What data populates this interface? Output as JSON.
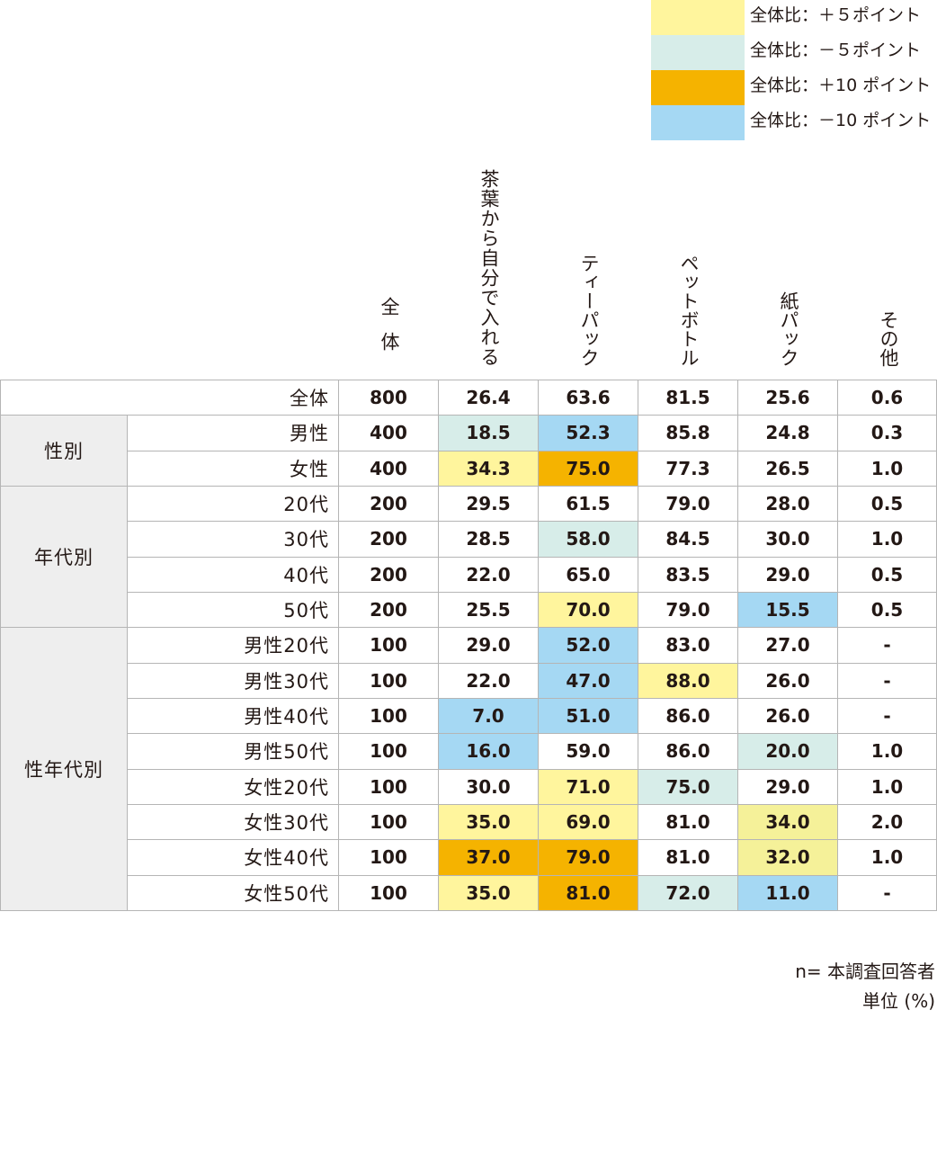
{
  "legend": [
    {
      "label": "全体比：＋５ポイント",
      "color": "#fff59d"
    },
    {
      "label": "全体比：－５ポイント",
      "color": "#d7ede9"
    },
    {
      "label": "全体比：＋10 ポイント",
      "color": "#f5b300"
    },
    {
      "label": "全体比：－10 ポイント",
      "color": "#a5d8f3"
    }
  ],
  "colors": {
    "plus5": "#fff59d",
    "minus5": "#d7ede9",
    "plus10": "#f5b300",
    "minus10": "#a5d8f3",
    "group_bg": "#eeeeee",
    "border": "#b5b5b5",
    "text": "#231815",
    "fill_secondary_yellow": "#f5f199"
  },
  "chart_data": {
    "type": "table",
    "columns": [
      "全体",
      "茶葉から自分で入れる",
      "ティーパック",
      "ペットボトル",
      "紙パック",
      "その他"
    ],
    "groups": [
      {
        "label": "",
        "rows": [
          0
        ]
      },
      {
        "label": "性別",
        "rows": [
          1,
          2
        ]
      },
      {
        "label": "年代別",
        "rows": [
          3,
          4,
          5,
          6
        ]
      },
      {
        "label": "性年代別",
        "rows": [
          7,
          8,
          9,
          10,
          11,
          12,
          13,
          14
        ]
      }
    ],
    "rows": [
      {
        "label": "全体",
        "n": "800",
        "values": [
          "26.4",
          "63.6",
          "81.5",
          "25.6",
          "0.6"
        ],
        "hl": [
          "",
          "",
          "",
          "",
          ""
        ]
      },
      {
        "label": "男性",
        "n": "400",
        "values": [
          "18.5",
          "52.3",
          "85.8",
          "24.8",
          "0.3"
        ],
        "hl": [
          "minus5",
          "minus10",
          "",
          "",
          ""
        ]
      },
      {
        "label": "女性",
        "n": "400",
        "values": [
          "34.3",
          "75.0",
          "77.3",
          "26.5",
          "1.0"
        ],
        "hl": [
          "plus5",
          "plus10",
          "",
          "",
          ""
        ]
      },
      {
        "label": "20代",
        "n": "200",
        "values": [
          "29.5",
          "61.5",
          "79.0",
          "28.0",
          "0.5"
        ],
        "hl": [
          "",
          "",
          "",
          "",
          ""
        ]
      },
      {
        "label": "30代",
        "n": "200",
        "values": [
          "28.5",
          "58.0",
          "84.5",
          "30.0",
          "1.0"
        ],
        "hl": [
          "",
          "minus5",
          "",
          "",
          ""
        ]
      },
      {
        "label": "40代",
        "n": "200",
        "values": [
          "22.0",
          "65.0",
          "83.5",
          "29.0",
          "0.5"
        ],
        "hl": [
          "",
          "",
          "",
          "",
          ""
        ]
      },
      {
        "label": "50代",
        "n": "200",
        "values": [
          "25.5",
          "70.0",
          "79.0",
          "15.5",
          "0.5"
        ],
        "hl": [
          "",
          "plus5",
          "",
          "minus10",
          ""
        ]
      },
      {
        "label": "男性20代",
        "n": "100",
        "values": [
          "29.0",
          "52.0",
          "83.0",
          "27.0",
          "-"
        ],
        "hl": [
          "",
          "minus10",
          "",
          "",
          ""
        ]
      },
      {
        "label": "男性30代",
        "n": "100",
        "values": [
          "22.0",
          "47.0",
          "88.0",
          "26.0",
          "-"
        ],
        "hl": [
          "",
          "minus10",
          "plus5",
          "",
          ""
        ]
      },
      {
        "label": "男性40代",
        "n": "100",
        "values": [
          "7.0",
          "51.0",
          "86.0",
          "26.0",
          "-"
        ],
        "hl": [
          "minus10",
          "minus10",
          "",
          "",
          ""
        ]
      },
      {
        "label": "男性50代",
        "n": "100",
        "values": [
          "16.0",
          "59.0",
          "86.0",
          "20.0",
          "1.0"
        ],
        "hl": [
          "minus10",
          "",
          "",
          "minus5",
          ""
        ]
      },
      {
        "label": "女性20代",
        "n": "100",
        "values": [
          "30.0",
          "71.0",
          "75.0",
          "29.0",
          "1.0"
        ],
        "hl": [
          "",
          "plus5",
          "minus5",
          "",
          ""
        ]
      },
      {
        "label": "女性30代",
        "n": "100",
        "values": [
          "35.0",
          "69.0",
          "81.0",
          "34.0",
          "2.0"
        ],
        "hl": [
          "plus5",
          "plus5",
          "",
          "plus5b",
          ""
        ]
      },
      {
        "label": "女性40代",
        "n": "100",
        "values": [
          "37.0",
          "79.0",
          "81.0",
          "32.0",
          "1.0"
        ],
        "hl": [
          "plus10",
          "plus10",
          "",
          "plus5b",
          ""
        ]
      },
      {
        "label": "女性50代",
        "n": "100",
        "values": [
          "35.0",
          "81.0",
          "72.0",
          "11.0",
          "-"
        ],
        "hl": [
          "plus5",
          "plus10",
          "minus5",
          "minus10",
          ""
        ]
      }
    ]
  },
  "notes": {
    "line1": "n= 本調査回答者",
    "line2": "単位 (%)"
  }
}
